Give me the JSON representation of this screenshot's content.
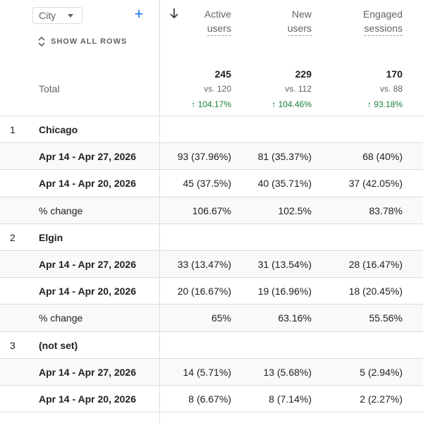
{
  "dimension_select": {
    "value": "City"
  },
  "add_button": {
    "label": "+"
  },
  "show_all_rows": {
    "label": "SHOW ALL ROWS"
  },
  "columns": [
    {
      "line1": "Active",
      "line2": "users"
    },
    {
      "line1": "New",
      "line2": "users"
    },
    {
      "line1": "Engaged",
      "line2": "sessions"
    }
  ],
  "total": {
    "label": "Total",
    "cells": [
      {
        "value": "245",
        "vs": "vs. 120",
        "change": "↑ 104.17%"
      },
      {
        "value": "229",
        "vs": "vs. 112",
        "change": "↑ 104.46%"
      },
      {
        "value": "170",
        "vs": "vs. 88",
        "change": "↑ 93.18%"
      }
    ]
  },
  "rows": [
    {
      "num": "1",
      "label": "Chicago",
      "cells": [
        "",
        "",
        ""
      ],
      "shade": false,
      "dim": false
    },
    {
      "num": "",
      "label": "Apr 14 - Apr 27, 2026",
      "cells": [
        "93 (37.96%)",
        "81 (35.37%)",
        "68 (40%)"
      ],
      "shade": true,
      "dim": false
    },
    {
      "num": "",
      "label": "Apr 14 - Apr 20, 2026",
      "cells": [
        "45 (37.5%)",
        "40 (35.71%)",
        "37 (42.05%)"
      ],
      "shade": false,
      "dim": false
    },
    {
      "num": "",
      "label": "% change",
      "cells": [
        "106.67%",
        "102.5%",
        "83.78%"
      ],
      "shade": true,
      "dim": true
    },
    {
      "num": "2",
      "label": "Elgin",
      "cells": [
        "",
        "",
        ""
      ],
      "shade": false,
      "dim": false
    },
    {
      "num": "",
      "label": "Apr 14 - Apr 27, 2026",
      "cells": [
        "33 (13.47%)",
        "31 (13.54%)",
        "28 (16.47%)"
      ],
      "shade": true,
      "dim": false
    },
    {
      "num": "",
      "label": "Apr 14 - Apr 20, 2026",
      "cells": [
        "20 (16.67%)",
        "19 (16.96%)",
        "18 (20.45%)"
      ],
      "shade": false,
      "dim": false
    },
    {
      "num": "",
      "label": "% change",
      "cells": [
        "65%",
        "63.16%",
        "55.56%"
      ],
      "shade": true,
      "dim": true
    },
    {
      "num": "3",
      "label": "(not set)",
      "cells": [
        "",
        "",
        ""
      ],
      "shade": false,
      "dim": false
    },
    {
      "num": "",
      "label": "Apr 14 - Apr 27, 2026",
      "cells": [
        "14 (5.71%)",
        "13 (5.68%)",
        "5 (2.94%)"
      ],
      "shade": true,
      "dim": false
    },
    {
      "num": "",
      "label": "Apr 14 - Apr 20, 2026",
      "cells": [
        "8 (6.67%)",
        "8 (7.14%)",
        "2 (2.27%)"
      ],
      "shade": false,
      "dim": false
    }
  ]
}
